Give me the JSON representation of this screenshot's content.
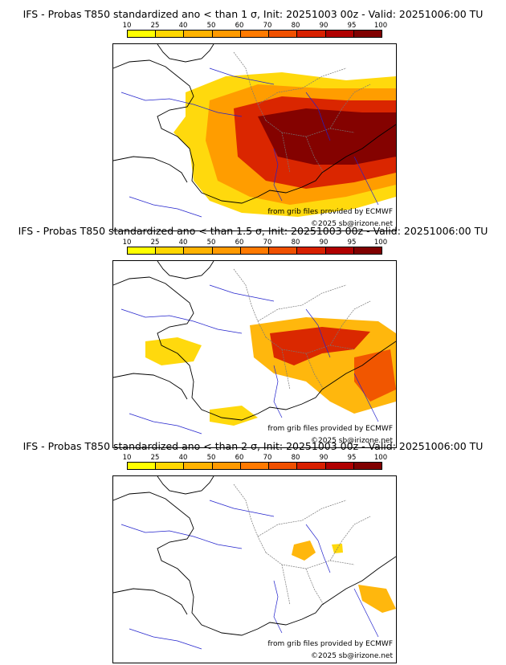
{
  "legend": {
    "ticks": [
      "10",
      "25",
      "40",
      "50",
      "60",
      "70",
      "80",
      "90",
      "95",
      "100"
    ],
    "colors": [
      "#ffff00",
      "#ffd700",
      "#ffb300",
      "#ff9a00",
      "#ff7a00",
      "#f05000",
      "#d82000",
      "#b00000",
      "#800000"
    ]
  },
  "credits": {
    "source": "from grib files provided by ECMWF",
    "copyright": "©2025 sb@irizone.net"
  },
  "panels": [
    {
      "title": "IFS - Probas T850  standardized ano < than 1 σ, Init: 20251003 00z - Valid: 20251006:00 TU",
      "level": 0.9
    },
    {
      "title": "IFS - Probas T850  standardized ano < than 1.5 σ, Init: 20251003 00z - Valid: 20251006:00 TU",
      "level": 0.5
    },
    {
      "title": "IFS - Probas T850  standardized ano < than 2 σ, Init: 20251003 00z - Valid: 20251006:00 TU",
      "level": 0.15
    }
  ]
}
